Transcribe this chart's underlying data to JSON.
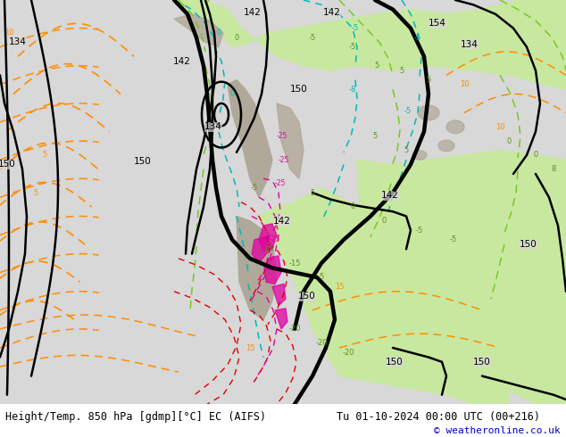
{
  "title_left": "Height/Temp. 850 hPa [gdmp][°C] EC (AIFS)",
  "title_right": "Tu 01-10-2024 00:00 UTC (00+216)",
  "copyright": "© weatheronline.co.uk",
  "bg_color": "#d8d8d8",
  "fig_width": 6.34,
  "fig_height": 4.9,
  "dpi": 100,
  "bottom_text_color": "#000000",
  "copyright_color": "#0000cc",
  "font_size_title": 8.5,
  "font_size_copyright": 8,
  "land_green_light": "#c8e8a0",
  "land_green_mid": "#b8e090",
  "land_gray": "#b0a898",
  "ocean_bg": "#d8d8d8",
  "black_contour_lw": 1.8,
  "black_bold_lw": 3.0,
  "orange_dashed_color": "#ff8c00",
  "cyan_dashed_color": "#00b8b8",
  "green_dashed_color": "#78c820",
  "red_dashed_color": "#e00000",
  "magenta_color": "#e000a0"
}
